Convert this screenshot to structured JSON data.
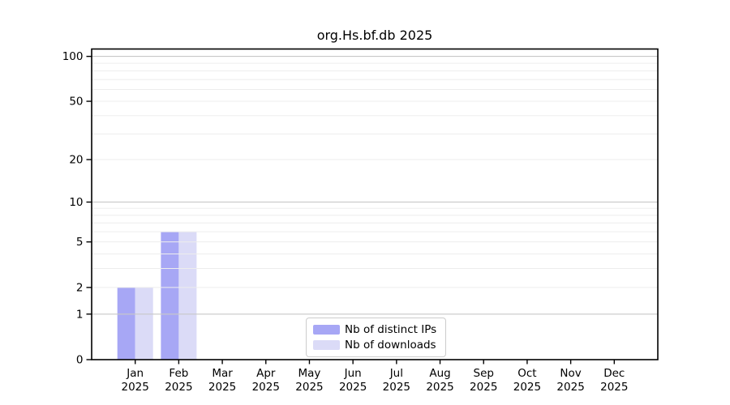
{
  "colors": {
    "background": "#ffffff",
    "text": "#000000",
    "frame": "#000000",
    "grid_minor": "#ededed",
    "grid_major": "#c8c8c8",
    "bar_distinct_ips": "#a7a7f5",
    "bar_downloads": "#dbdbf7",
    "legend_border": "#cccccc"
  },
  "chart_data": {
    "type": "bar",
    "title": "org.Hs.bf.db 2025",
    "year": "2025",
    "categories": [
      "Jan",
      "Feb",
      "Mar",
      "Apr",
      "May",
      "Jun",
      "Jul",
      "Aug",
      "Sep",
      "Oct",
      "Nov",
      "Dec"
    ],
    "series": [
      {
        "name": "Nb of distinct IPs",
        "color": "#a7a7f5",
        "values": [
          2,
          6,
          0,
          0,
          0,
          0,
          0,
          0,
          0,
          0,
          0,
          0
        ]
      },
      {
        "name": "Nb of downloads",
        "color": "#dbdbf7",
        "values": [
          2,
          6,
          0,
          0,
          0,
          0,
          0,
          0,
          0,
          0,
          0,
          0
        ]
      }
    ],
    "xlabel": "",
    "ylabel": "",
    "yscale": "log1p",
    "ylim": [
      0,
      112
    ],
    "yticks": [
      0,
      1,
      2,
      5,
      10,
      20,
      50,
      100
    ],
    "minor_gridlines": [
      2,
      3,
      4,
      5,
      6,
      7,
      8,
      9,
      20,
      30,
      40,
      50,
      60,
      70,
      80,
      90
    ],
    "major_gridlines": [
      1,
      10,
      100
    ],
    "grid": true,
    "legend_position": "bottom-center"
  }
}
